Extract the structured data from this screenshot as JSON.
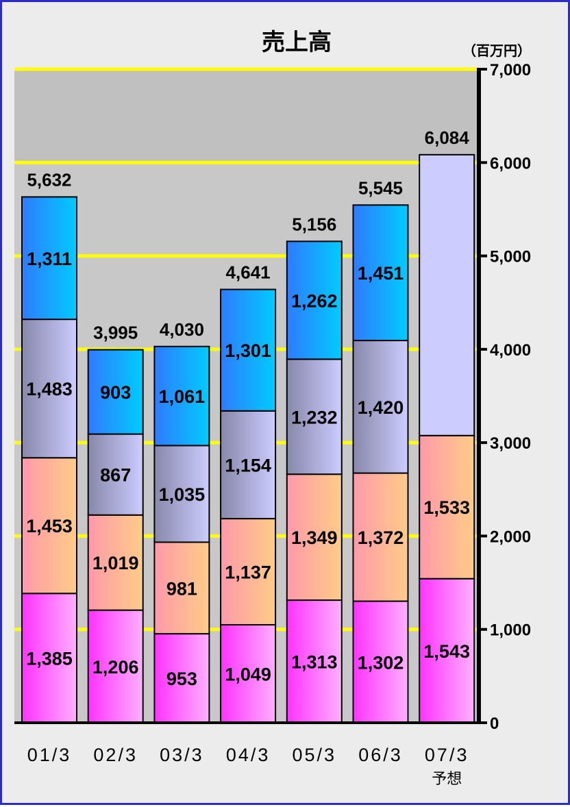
{
  "chart_data": {
    "type": "bar",
    "stacked": true,
    "title": "売上高",
    "unit": "（百万円）",
    "categories": [
      "01/3",
      "02/3",
      "03/3",
      "04/3",
      "05/3",
      "06/3",
      "07/3"
    ],
    "category_notes": [
      "",
      "",
      "",
      "",
      "",
      "",
      "予想"
    ],
    "totals": [
      5632,
      3995,
      4030,
      4641,
      5156,
      5545,
      6084
    ],
    "series": [
      {
        "values": [
          1385,
          1206,
          953,
          1049,
          1313,
          1302,
          1543
        ],
        "color": "#ff33ff"
      },
      {
        "values": [
          1453,
          1019,
          981,
          1137,
          1349,
          1372,
          1533
        ],
        "color": "#ffcc99"
      },
      {
        "values": [
          1483,
          867,
          1035,
          1154,
          1232,
          1420,
          3008
        ],
        "color": "#ccccff",
        "hidden_labels": [
          6
        ]
      },
      {
        "values": [
          1311,
          903,
          1061,
          1301,
          1262,
          1451,
          null
        ],
        "color": "#00ccff"
      }
    ],
    "yaxis": {
      "ylim": [
        0,
        7000
      ],
      "position": "right",
      "ticks": [
        0,
        1000,
        2000,
        3000,
        4000,
        5000,
        6000,
        7000
      ],
      "tick_labels": [
        "0",
        "1,000",
        "2,000",
        "3,000",
        "4,000",
        "5,000",
        "6,000",
        "7,000"
      ]
    },
    "grid": true,
    "gridline_color": "#ffff00",
    "plot_background_top": "#c0c0c0",
    "page_background": "#ececec",
    "border_color": "#2b2bd0"
  }
}
